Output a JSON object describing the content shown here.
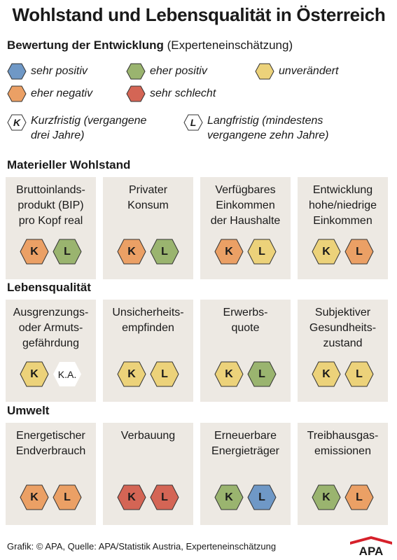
{
  "title": "Wohlstand und Lebensqualität in Österreich",
  "subtitle": {
    "bold": "Bewertung der Entwicklung",
    "normal": " (Experteneinschätzung)"
  },
  "colors": {
    "sehr_positiv": "#6f98c6",
    "eher_positiv": "#9ab46f",
    "unveraendert": "#ecd27a",
    "eher_negativ": "#eba065",
    "sehr_schlecht": "#d46555",
    "card_bg": "#ede9e3",
    "logo_red": "#d6202a"
  },
  "legend": [
    {
      "label": "sehr positiv",
      "color": "#6f98c6"
    },
    {
      "label": "eher positiv",
      "color": "#9ab46f"
    },
    {
      "label": "unverändert",
      "color": "#ecd27a"
    },
    {
      "label": "eher negativ",
      "color": "#eba065"
    },
    {
      "label": "sehr schlecht",
      "color": "#d46555"
    }
  ],
  "keys": {
    "k": {
      "letter": "K",
      "label": "Kurzfristig (vergangene\ndrei Jahre)"
    },
    "l": {
      "letter": "L",
      "label": "Langfristig (mindestens\nvergangene zehn Jahre)"
    }
  },
  "sections": [
    {
      "title": "Materieller Wohlstand",
      "cards": [
        {
          "label": "Bruttoinlands-\nprodukt (BIP)\npro Kopf real",
          "k": "#eba065",
          "l": "#9ab46f",
          "l_text": "L"
        },
        {
          "label": "Privater\nKonsum",
          "k": "#eba065",
          "l": "#9ab46f",
          "l_text": "L"
        },
        {
          "label": "Verfügbares\nEinkommen\nder Haushalte",
          "k": "#eba065",
          "l": "#ecd27a",
          "l_text": "L"
        },
        {
          "label": "Entwicklung\nhohe/niedrige\nEinkommen",
          "k": "#ecd27a",
          "l": "#eba065",
          "l_text": "L"
        }
      ]
    },
    {
      "title": "Lebensqualität",
      "cards": [
        {
          "label": "Ausgrenzungs-\noder Armuts-\ngefährdung",
          "k": "#ecd27a",
          "l": "#ffffff",
          "l_text": "K.A."
        },
        {
          "label": "Unsicherheits-\nempfinden",
          "k": "#ecd27a",
          "l": "#ecd27a",
          "l_text": "L"
        },
        {
          "label": "Erwerbs-\nquote",
          "k": "#ecd27a",
          "l": "#9ab46f",
          "l_text": "L"
        },
        {
          "label": "Subjektiver\nGesundheits-\nzustand",
          "k": "#ecd27a",
          "l": "#ecd27a",
          "l_text": "L"
        }
      ]
    },
    {
      "title": "Umwelt",
      "cards": [
        {
          "label": "Energetischer\nEndverbrauch",
          "k": "#eba065",
          "l": "#eba065",
          "l_text": "L"
        },
        {
          "label": "Verbauung",
          "k": "#d46555",
          "l": "#d46555",
          "l_text": "L"
        },
        {
          "label": "Erneuerbare\nEnergieträger",
          "k": "#9ab46f",
          "l": "#6f98c6",
          "l_text": "L"
        },
        {
          "label": "Treibhausgas-\nemissionen",
          "k": "#9ab46f",
          "l": "#eba065",
          "l_text": "L"
        }
      ]
    }
  ],
  "footer": "Grafik: © APA, Quelle: APA/Statistik Austria, Experteneinschätzung",
  "logo_text": "APA"
}
